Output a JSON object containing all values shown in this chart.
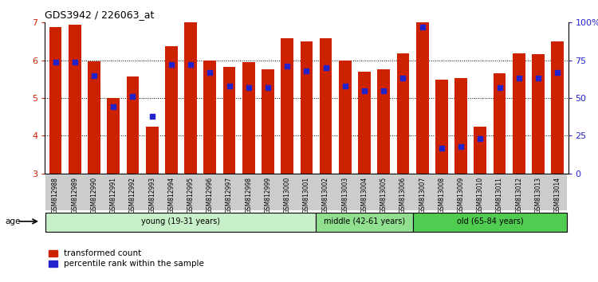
{
  "title": "GDS3942 / 226063_at",
  "samples": [
    "GSM812988",
    "GSM812989",
    "GSM812990",
    "GSM812991",
    "GSM812992",
    "GSM812993",
    "GSM812994",
    "GSM812995",
    "GSM812996",
    "GSM812997",
    "GSM812998",
    "GSM812999",
    "GSM813000",
    "GSM813001",
    "GSM813002",
    "GSM813003",
    "GSM813004",
    "GSM813005",
    "GSM813006",
    "GSM813007",
    "GSM813008",
    "GSM813009",
    "GSM813010",
    "GSM813011",
    "GSM813012",
    "GSM813013",
    "GSM813014"
  ],
  "transformed_count": [
    6.88,
    6.95,
    5.98,
    5.0,
    5.57,
    4.25,
    6.38,
    7.0,
    6.0,
    5.82,
    5.95,
    5.77,
    6.58,
    6.51,
    6.58,
    6.0,
    5.7,
    5.77,
    6.19,
    7.0,
    5.48,
    5.52,
    4.25,
    5.65,
    6.19,
    6.16,
    6.5
  ],
  "percentile_rank": [
    74,
    74,
    65,
    44,
    51,
    38,
    72,
    72,
    67,
    58,
    57,
    57,
    71,
    68,
    70,
    58,
    55,
    55,
    63,
    97,
    17,
    18,
    23,
    57,
    63,
    63,
    67
  ],
  "groups": [
    {
      "label": "young (19-31 years)",
      "start": 0,
      "end": 14,
      "color": "#c8f0c8"
    },
    {
      "label": "middle (42-61 years)",
      "start": 14,
      "end": 19,
      "color": "#90e090"
    },
    {
      "label": "old (65-84 years)",
      "start": 19,
      "end": 27,
      "color": "#50cc50"
    }
  ],
  "ylim_left": [
    3,
    7
  ],
  "ylim_right": [
    0,
    100
  ],
  "yticks_left": [
    3,
    4,
    5,
    6,
    7
  ],
  "yticks_right": [
    0,
    25,
    50,
    75,
    100
  ],
  "ytick_labels_right": [
    "0",
    "25",
    "50",
    "75",
    "100%"
  ],
  "bar_color": "#cc2200",
  "dot_color": "#2222cc",
  "bg_color": "#ffffff",
  "axis_color_left": "#cc2200",
  "axis_color_right": "#2222cc",
  "xtick_bg_color": "#cccccc"
}
